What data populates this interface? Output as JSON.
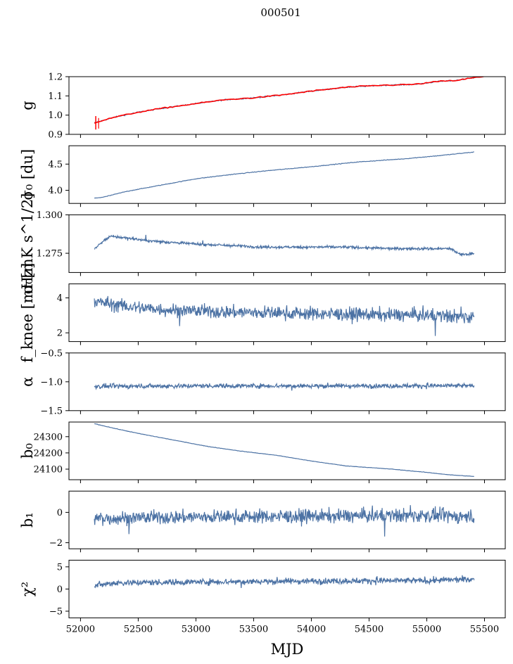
{
  "chart_data": {
    "type": "line",
    "title": "000501",
    "xlabel": "MJD",
    "xlim": [
      51900,
      55680
    ],
    "xticks": [
      52000,
      52500,
      53000,
      53500,
      54000,
      54500,
      55000,
      55500
    ],
    "x_range": [
      52120,
      55410
    ],
    "line_color": "#4c72a4",
    "overlay_color": "#ff0000",
    "panels": [
      {
        "id": "g",
        "ylabel": "g",
        "ylim": [
          0.9,
          1.2
        ],
        "yticks": [
          "0.9",
          "1.0",
          "1.1",
          "1.2"
        ],
        "series": [
          {
            "name": "",
            "kind": "trend",
            "x": [
              52120,
              52300,
              52500,
              52700,
              53000,
              53250,
              53500,
              53750,
              54000,
              54300,
              54600,
              54900,
              55100,
              55250,
              55410
            ],
            "y": [
              0.96,
              0.99,
              1.015,
              1.035,
              1.06,
              1.08,
              1.09,
              1.105,
              1.125,
              1.145,
              1.155,
              1.16,
              1.175,
              1.18,
              1.195
            ],
            "noise": 0.003
          },
          {
            "name": "",
            "kind": "overlay",
            "x": [
              52120,
              52300,
              52500,
              52700,
              53000,
              53250,
              53500,
              53750,
              54000,
              54300,
              54600,
              54900,
              55100,
              55250,
              55410,
              55500
            ],
            "y": [
              0.96,
              0.99,
              1.015,
              1.035,
              1.06,
              1.08,
              1.09,
              1.105,
              1.125,
              1.145,
              1.155,
              1.16,
              1.175,
              1.18,
              1.195,
              1.2
            ],
            "noise": 0.003
          }
        ]
      },
      {
        "id": "sigma0-du",
        "ylabel": "σ₀ [du]",
        "ylim": [
          3.75,
          4.85
        ],
        "yticks": [
          "4.0",
          "4.5"
        ],
        "series": [
          {
            "name": "",
            "kind": "trend",
            "x": [
              52120,
              52200,
              52400,
              52700,
              53000,
              53300,
              53600,
              54000,
              54400,
              54800,
              55100,
              55410
            ],
            "y": [
              3.85,
              3.87,
              3.98,
              4.1,
              4.22,
              4.3,
              4.37,
              4.45,
              4.54,
              4.6,
              4.66,
              4.73
            ],
            "noise": 0.006
          }
        ]
      },
      {
        "id": "sigma0-mk",
        "ylabel": "σ₀[mK s^1/2]",
        "ylim": [
          1.2625,
          1.3
        ],
        "yticks": [
          "1.275",
          "1.300"
        ],
        "series": [
          {
            "name": "",
            "kind": "noise",
            "x": [
              52120,
              52250,
              52400,
              52600,
              52800,
              53000,
              53300,
              53600,
              54000,
              54300,
              54700,
              55000,
              55200,
              55300,
              55410
            ],
            "y": [
              1.278,
              1.286,
              1.285,
              1.283,
              1.282,
              1.281,
              1.28,
              1.279,
              1.279,
              1.279,
              1.278,
              1.278,
              1.278,
              1.274,
              1.275
            ],
            "noise": 0.0009
          }
        ]
      },
      {
        "id": "fknee",
        "ylabel": "f_knee [mHz]",
        "ylim": [
          1.5,
          4.8
        ],
        "yticks": [
          "2",
          "4"
        ],
        "series": [
          {
            "name": "",
            "kind": "noise",
            "x": [
              52120,
              52400,
              52800,
              53200,
              53600,
              54000,
              54500,
              55000,
              55410
            ],
            "y": [
              3.8,
              3.5,
              3.3,
              3.2,
              3.15,
              3.1,
              3.05,
              3.0,
              2.9
            ],
            "noise": 0.38
          }
        ]
      },
      {
        "id": "alpha",
        "ylabel": "α",
        "ylim": [
          -1.5,
          -0.5
        ],
        "yticks": [
          "−1.5",
          "−1.0",
          "−0.5"
        ],
        "series": [
          {
            "name": "",
            "kind": "noise",
            "x": [
              52120,
              53000,
              54000,
              55000,
              55410
            ],
            "y": [
              -1.08,
              -1.07,
              -1.07,
              -1.07,
              -1.07
            ],
            "noise": 0.04
          }
        ]
      },
      {
        "id": "b0",
        "ylabel": "b₀",
        "ylim": [
          24035,
          24390
        ],
        "yticks": [
          "24100",
          "24200",
          "24300"
        ],
        "series": [
          {
            "name": "",
            "kind": "trend",
            "x": [
              52120,
              52300,
              52500,
              52800,
              53100,
              53400,
              53700,
              54000,
              54300,
              54700,
              55000,
              55200,
              55410
            ],
            "y": [
              24380,
              24350,
              24320,
              24280,
              24240,
              24210,
              24185,
              24150,
              24120,
              24100,
              24080,
              24065,
              24055
            ],
            "noise": 1.2
          }
        ]
      },
      {
        "id": "b1",
        "ylabel": "b₁",
        "ylim": [
          -2.4,
          1.4
        ],
        "yticks": [
          "−2",
          "0"
        ],
        "series": [
          {
            "name": "",
            "kind": "noise",
            "x": [
              52120,
              53000,
              54000,
              55000,
              55410
            ],
            "y": [
              -0.4,
              -0.3,
              -0.25,
              -0.2,
              -0.3
            ],
            "noise": 0.45
          }
        ]
      },
      {
        "id": "chi2",
        "ylabel": "χ²",
        "ylim": [
          -6.5,
          6.5
        ],
        "yticks": [
          "−5",
          "0",
          "5"
        ],
        "series": [
          {
            "name": "",
            "kind": "noise",
            "x": [
              52120,
              52300,
              53000,
              54000,
              55000,
              55410
            ],
            "y": [
              0.8,
              1.4,
              1.6,
              1.8,
              1.9,
              2.2
            ],
            "noise": 0.7
          }
        ]
      }
    ]
  }
}
